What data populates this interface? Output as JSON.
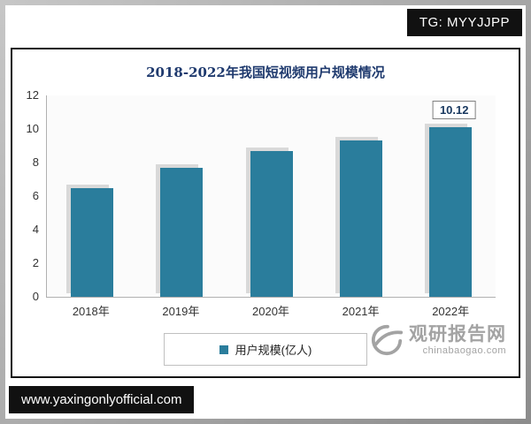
{
  "badge": {
    "text": "TG: MYYJJPP"
  },
  "footer": {
    "url": "www.yaxingonlyofficial.com"
  },
  "watermark": {
    "name": "观研报告网",
    "domain": "chinabaogao.com"
  },
  "chart_data": {
    "type": "bar",
    "title": "2018-2022年我国短视频用户规模情况",
    "categories": [
      "2018年",
      "2019年",
      "2020年",
      "2021年",
      "2022年"
    ],
    "values": [
      6.5,
      7.7,
      8.7,
      9.3,
      10.12
    ],
    "data_labels": [
      "",
      "",
      "",
      "",
      "10.12"
    ],
    "legend_label": "用户规模(亿人)",
    "legend_position": "bottom",
    "xlabel": "",
    "ylabel": "",
    "ylim": [
      0,
      12
    ],
    "yticks": [
      0,
      2,
      4,
      6,
      8,
      10,
      12
    ],
    "grid": false,
    "bar_color": "#2a7d9c",
    "bar_shadow_color": "#d9d9d9",
    "title_color": "#1f3a6e"
  }
}
